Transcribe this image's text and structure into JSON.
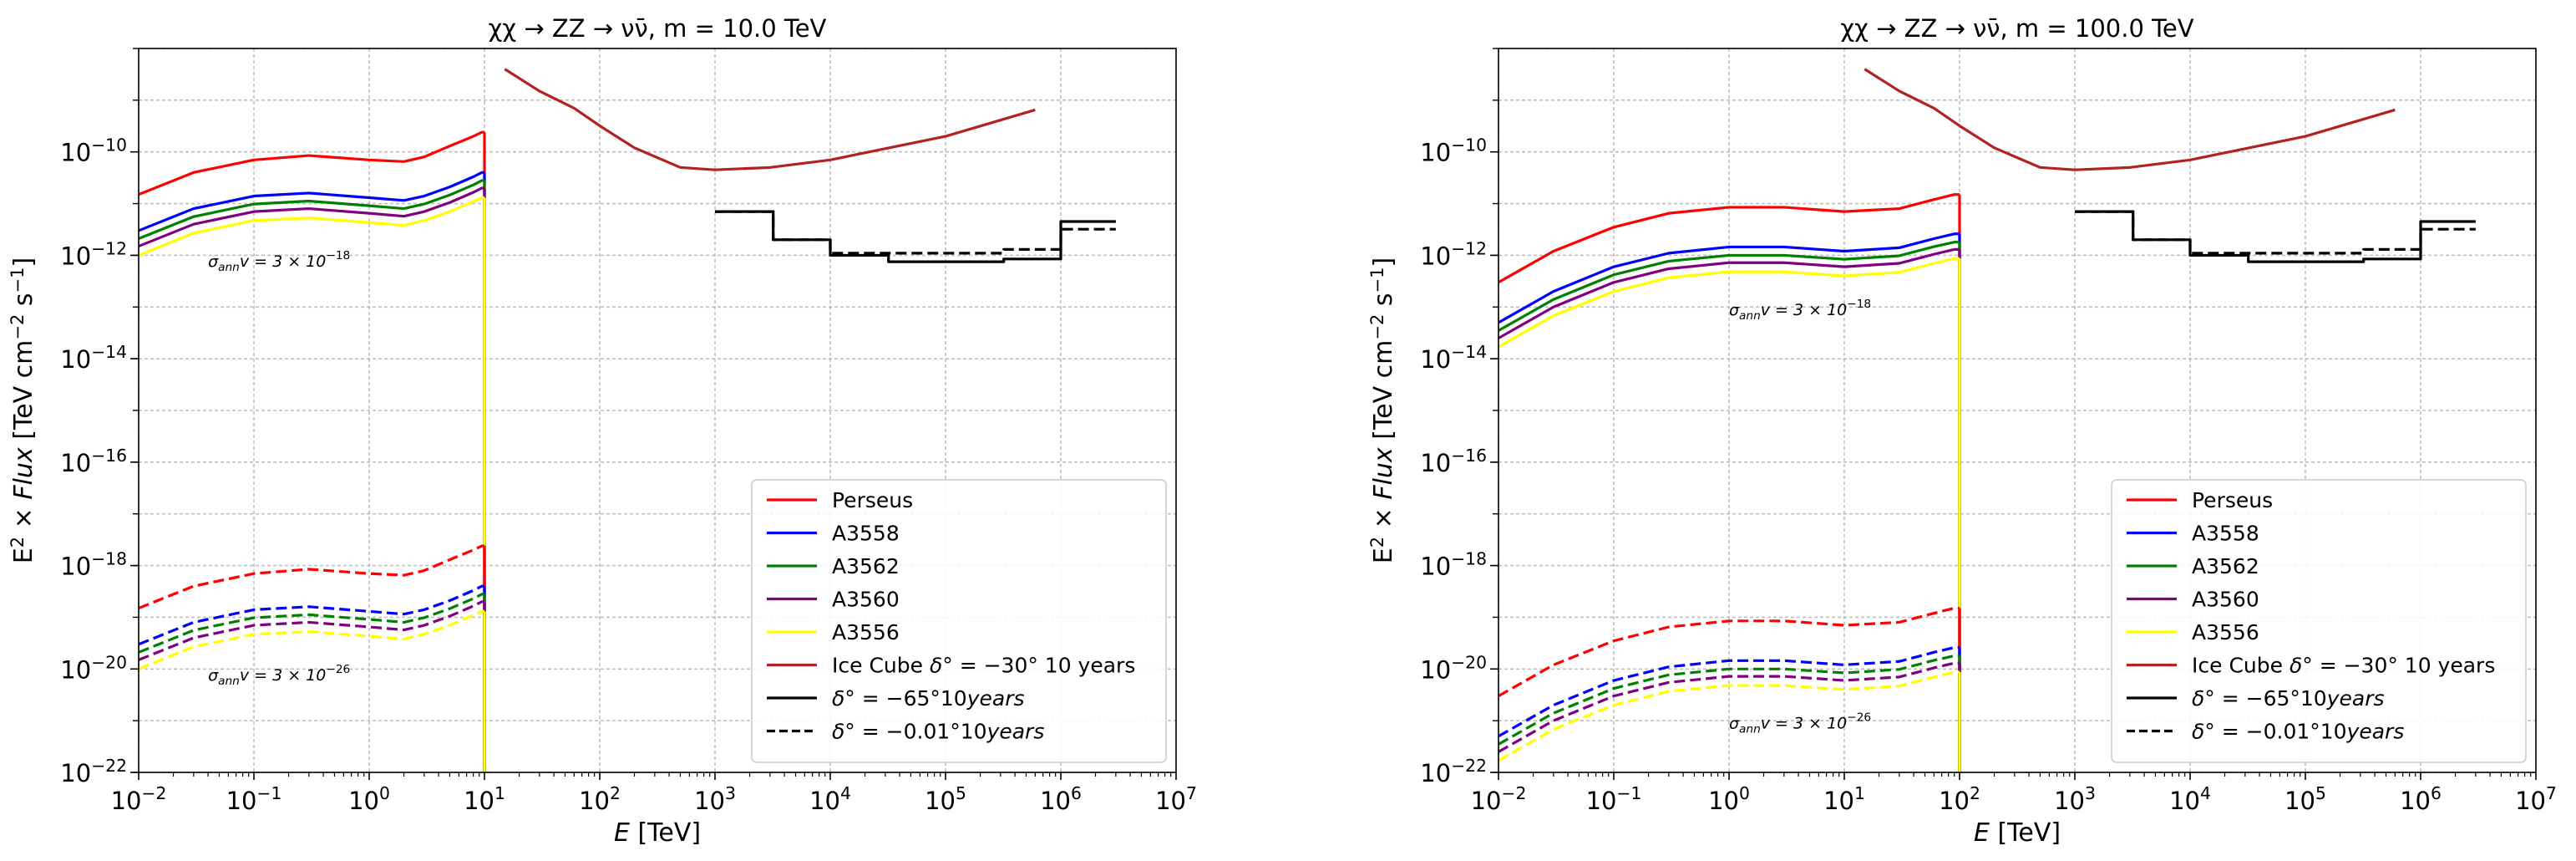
{
  "figure": {
    "ylabel_html": "E<tspan font-size='0.7em' dy='-10'>2</tspan><tspan dy='10'> × </tspan><tspan font-style='italic'>Flux</tspan> [TeV cm<tspan font-size='0.7em' dy='-10'>−2</tspan><tspan dy='10'> s</tspan><tspan font-size='0.7em' dy='-10'>−1</tspan><tspan dy='10'>]</tspan>",
    "ylabel_text": "E^2 × Flux [TeV cm^-2 s^-1]"
  },
  "chart_data": [
    {
      "type": "line",
      "title": "χχ → ZZ → νν̄, m = 10.0 TeV",
      "xlabel": "E [TeV]",
      "ylabel": "E^2 × Flux [TeV cm^-2 s^-1]",
      "xscale": "log",
      "yscale": "log",
      "xlim": [
        0.01,
        10000000
      ],
      "ylim": [
        1e-22,
        1e-08
      ],
      "x_ticks": [
        "10^-2",
        "10^-1",
        "10^0",
        "10^1",
        "10^2",
        "10^3",
        "10^4",
        "10^5",
        "10^6",
        "10^7"
      ],
      "y_ticks": [
        "10^-22",
        "10^-20",
        "10^-18",
        "10^-16",
        "10^-14",
        "10^-12",
        "10^-10"
      ],
      "grid": true,
      "legend_position": "lower-right",
      "annotations": [
        {
          "text": "σ_ann v = 3 × 10^-18",
          "x": 0.04,
          "y": 6e-13
        },
        {
          "text": "σ_ann v = 3 × 10^-26",
          "x": 0.04,
          "y": 6e-21
        }
      ],
      "dm_mass_tev": 10,
      "series": [
        {
          "name": "Perseus",
          "color": "#ff0000",
          "style": "solid",
          "x": [
            0.01,
            0.03,
            0.1,
            0.3,
            1,
            2,
            3,
            5,
            8,
            9.5,
            10
          ],
          "y": [
            1.5e-11,
            4e-11,
            7e-11,
            8.5e-11,
            7e-11,
            6.5e-11,
            8e-11,
            1.3e-10,
            2e-10,
            2.4e-10,
            2.4e-10
          ]
        },
        {
          "name": "A3558",
          "color": "#0000ff",
          "style": "solid",
          "x": [
            0.01,
            0.03,
            0.1,
            0.3,
            1,
            2,
            3,
            5,
            8,
            9.5,
            10
          ],
          "y": [
            3e-12,
            8e-12,
            1.4e-11,
            1.6e-11,
            1.3e-11,
            1.15e-11,
            1.4e-11,
            2.1e-11,
            3.3e-11,
            4e-11,
            4e-11
          ]
        },
        {
          "name": "A3562",
          "color": "#008000",
          "style": "solid",
          "x": [
            0.01,
            0.03,
            0.1,
            0.3,
            1,
            2,
            3,
            5,
            8,
            9.5,
            10
          ],
          "y": [
            2.1e-12,
            5.6e-12,
            9.8e-12,
            1.12e-11,
            9.1e-12,
            8e-12,
            9.8e-12,
            1.47e-11,
            2.3e-11,
            2.8e-11,
            2.8e-11
          ]
        },
        {
          "name": "A3560",
          "color": "#800080",
          "style": "solid",
          "x": [
            0.01,
            0.03,
            0.1,
            0.3,
            1,
            2,
            3,
            5,
            8,
            9.5,
            10
          ],
          "y": [
            1.5e-12,
            4e-12,
            7e-12,
            8e-12,
            6.5e-12,
            5.7e-12,
            7e-12,
            1.05e-11,
            1.65e-11,
            2e-11,
            2e-11
          ]
        },
        {
          "name": "A3556",
          "color": "#ffff00",
          "style": "solid",
          "x": [
            0.01,
            0.03,
            0.1,
            0.3,
            1,
            2,
            3,
            5,
            8,
            9.5,
            10
          ],
          "y": [
            1e-12,
            2.7e-12,
            4.7e-12,
            5.3e-12,
            4.3e-12,
            3.8e-12,
            4.7e-12,
            7e-12,
            1.1e-11,
            1.3e-11,
            1.3e-11
          ]
        },
        {
          "name": "",
          "color": "#ff0000",
          "style": "dashed",
          "x": [
            0.01,
            0.03,
            0.1,
            0.3,
            1,
            2,
            3,
            5,
            8,
            9.5,
            10
          ],
          "y": [
            1.5e-19,
            4e-19,
            7e-19,
            8.5e-19,
            7e-19,
            6.5e-19,
            8e-19,
            1.3e-18,
            2e-18,
            2.4e-18,
            2.4e-18
          ]
        },
        {
          "name": "",
          "color": "#0000ff",
          "style": "dashed",
          "x": [
            0.01,
            0.03,
            0.1,
            0.3,
            1,
            2,
            3,
            5,
            8,
            9.5,
            10
          ],
          "y": [
            3e-20,
            8e-20,
            1.4e-19,
            1.6e-19,
            1.3e-19,
            1.15e-19,
            1.4e-19,
            2.1e-19,
            3.3e-19,
            4e-19,
            4e-19
          ]
        },
        {
          "name": "",
          "color": "#008000",
          "style": "dashed",
          "x": [
            0.01,
            0.03,
            0.1,
            0.3,
            1,
            2,
            3,
            5,
            8,
            9.5,
            10
          ],
          "y": [
            2.1e-20,
            5.6e-20,
            9.8e-20,
            1.12e-19,
            9.1e-20,
            8e-20,
            9.8e-20,
            1.47e-19,
            2.3e-19,
            2.8e-19,
            2.8e-19
          ]
        },
        {
          "name": "",
          "color": "#800080",
          "style": "dashed",
          "x": [
            0.01,
            0.03,
            0.1,
            0.3,
            1,
            2,
            3,
            5,
            8,
            9.5,
            10
          ],
          "y": [
            1.5e-20,
            4e-20,
            7e-20,
            8e-20,
            6.5e-20,
            5.7e-20,
            7e-20,
            1.05e-19,
            1.65e-19,
            2e-19,
            2e-19
          ]
        },
        {
          "name": "",
          "color": "#ffff00",
          "style": "dashed",
          "x": [
            0.01,
            0.03,
            0.1,
            0.3,
            1,
            2,
            3,
            5,
            8,
            9.5,
            10
          ],
          "y": [
            1e-20,
            2.7e-20,
            4.7e-20,
            5.3e-20,
            4.3e-20,
            3.8e-20,
            4.7e-20,
            7e-20,
            1.1e-19,
            1.3e-19,
            1.3e-19
          ]
        },
        {
          "name": "Ice Cube δ° = −30° 10 years",
          "color": "#b22222",
          "style": "solid",
          "x": [
            15,
            30,
            60,
            100,
            200,
            500,
            1000,
            3000,
            10000,
            100000,
            600000
          ],
          "y": [
            4e-09,
            1.5e-09,
            7e-10,
            3.2e-10,
            1.2e-10,
            5e-11,
            4.5e-11,
            5e-11,
            7e-11,
            2e-10,
            6.5e-10
          ]
        },
        {
          "name": "δ° = −65°10years",
          "color": "#000000",
          "style": "solid",
          "x": [
            1000,
            3200,
            3200,
            10000,
            10000,
            32000,
            32000,
            320000,
            320000,
            1000000,
            1000000,
            3000000
          ],
          "y": [
            7e-12,
            7e-12,
            2e-12,
            2e-12,
            1e-12,
            1e-12,
            7.5e-13,
            7.5e-13,
            8.5e-13,
            8.5e-13,
            4.5e-12,
            4.5e-12
          ]
        },
        {
          "name": "δ° = −0.01°10years",
          "color": "#000000",
          "style": "dashed",
          "x": [
            1000,
            3200,
            3200,
            10000,
            10000,
            320000,
            320000,
            1000000,
            1000000,
            3000000
          ],
          "y": [
            7e-12,
            7e-12,
            2e-12,
            2e-12,
            1.1e-12,
            1.1e-12,
            1.3e-12,
            1.3e-12,
            3.2e-12,
            3.2e-12
          ]
        }
      ],
      "legend": [
        "Perseus",
        "A3558",
        "A3562",
        "A3560",
        "A3556",
        "Ice Cube δ° = −30° 10 years",
        "δ° = −65°10years",
        "δ° = −0.01°10years"
      ]
    },
    {
      "type": "line",
      "title": "χχ → ZZ → νν̄, m = 100.0 TeV",
      "xlabel": "E [TeV]",
      "ylabel": "E^2 × Flux [TeV cm^-2 s^-1]",
      "xscale": "log",
      "yscale": "log",
      "xlim": [
        0.01,
        10000000
      ],
      "ylim": [
        1e-22,
        1e-08
      ],
      "x_ticks": [
        "10^-2",
        "10^-1",
        "10^0",
        "10^1",
        "10^2",
        "10^3",
        "10^4",
        "10^5",
        "10^6",
        "10^7"
      ],
      "y_ticks": [
        "10^-22",
        "10^-20",
        "10^-18",
        "10^-16",
        "10^-14",
        "10^-12",
        "10^-10"
      ],
      "grid": true,
      "legend_position": "lower-right",
      "annotations": [
        {
          "text": "σ_ann v = 3 × 10^-18",
          "x": 1,
          "y": 7e-14
        },
        {
          "text": "σ_ann v = 3 × 10^-26",
          "x": 1,
          "y": 7e-22
        }
      ],
      "dm_mass_tev": 100,
      "series": [
        {
          "name": "Perseus",
          "color": "#ff0000",
          "style": "solid",
          "x": [
            0.01,
            0.03,
            0.1,
            0.3,
            1,
            3,
            10,
            30,
            60,
            90,
            100
          ],
          "y": [
            3e-13,
            1.2e-12,
            3.5e-12,
            6.5e-12,
            8.5e-12,
            8.5e-12,
            7e-12,
            8e-12,
            1.2e-11,
            1.5e-11,
            1.5e-11
          ]
        },
        {
          "name": "A3558",
          "color": "#0000ff",
          "style": "solid",
          "x": [
            0.01,
            0.03,
            0.1,
            0.3,
            1,
            3,
            10,
            30,
            60,
            90,
            100
          ],
          "y": [
            5e-14,
            2e-13,
            6e-13,
            1.1e-12,
            1.45e-12,
            1.45e-12,
            1.2e-12,
            1.4e-12,
            2.1e-12,
            2.6e-12,
            2.6e-12
          ]
        },
        {
          "name": "A3562",
          "color": "#008000",
          "style": "solid",
          "x": [
            0.01,
            0.03,
            0.1,
            0.3,
            1,
            3,
            10,
            30,
            60,
            90,
            100
          ],
          "y": [
            3.5e-14,
            1.4e-13,
            4.2e-13,
            7.7e-13,
            1e-12,
            1e-12,
            8.4e-13,
            9.8e-13,
            1.47e-12,
            1.8e-12,
            1.8e-12
          ]
        },
        {
          "name": "A3560",
          "color": "#800080",
          "style": "solid",
          "x": [
            0.01,
            0.03,
            0.1,
            0.3,
            1,
            3,
            10,
            30,
            60,
            90,
            100
          ],
          "y": [
            2.5e-14,
            1e-13,
            3e-13,
            5.5e-13,
            7.2e-13,
            7.2e-13,
            6e-13,
            7e-13,
            1.05e-12,
            1.3e-12,
            1.3e-12
          ]
        },
        {
          "name": "A3556",
          "color": "#ffff00",
          "style": "solid",
          "x": [
            0.01,
            0.03,
            0.1,
            0.3,
            1,
            3,
            10,
            30,
            60,
            90,
            100
          ],
          "y": [
            1.7e-14,
            6.8e-14,
            2e-13,
            3.7e-13,
            4.8e-13,
            4.8e-13,
            4e-13,
            4.7e-13,
            7e-13,
            8.7e-13,
            8.7e-13
          ]
        },
        {
          "name": "",
          "color": "#ff0000",
          "style": "dashed",
          "x": [
            0.01,
            0.03,
            0.1,
            0.3,
            1,
            3,
            10,
            30,
            60,
            90,
            100
          ],
          "y": [
            3e-21,
            1.2e-20,
            3.5e-20,
            6.5e-20,
            8.5e-20,
            8.5e-20,
            7e-20,
            8e-20,
            1.2e-19,
            1.5e-19,
            1.5e-19
          ]
        },
        {
          "name": "",
          "color": "#0000ff",
          "style": "dashed",
          "x": [
            0.01,
            0.03,
            0.1,
            0.3,
            1,
            3,
            10,
            30,
            60,
            90,
            100
          ],
          "y": [
            5e-22,
            2e-21,
            6e-21,
            1.1e-20,
            1.45e-20,
            1.45e-20,
            1.2e-20,
            1.4e-20,
            2.1e-20,
            2.6e-20,
            2.6e-20
          ]
        },
        {
          "name": "",
          "color": "#008000",
          "style": "dashed",
          "x": [
            0.01,
            0.03,
            0.1,
            0.3,
            1,
            3,
            10,
            30,
            60,
            90,
            100
          ],
          "y": [
            3.5e-22,
            1.4e-21,
            4.2e-21,
            7.7e-21,
            1e-20,
            1e-20,
            8.4e-21,
            9.8e-21,
            1.47e-20,
            1.8e-20,
            1.8e-20
          ]
        },
        {
          "name": "",
          "color": "#800080",
          "style": "dashed",
          "x": [
            0.01,
            0.03,
            0.1,
            0.3,
            1,
            3,
            10,
            30,
            60,
            90,
            100
          ],
          "y": [
            2.5e-22,
            1e-21,
            3e-21,
            5.5e-21,
            7.2e-21,
            7.2e-21,
            6e-21,
            7e-21,
            1.05e-20,
            1.3e-20,
            1.3e-20
          ]
        },
        {
          "name": "",
          "color": "#ffff00",
          "style": "dashed",
          "x": [
            0.01,
            0.03,
            0.1,
            0.3,
            1,
            3,
            10,
            30,
            60,
            90,
            100
          ],
          "y": [
            1.7e-22,
            6.8e-22,
            2e-21,
            3.7e-21,
            4.8e-21,
            4.8e-21,
            4e-21,
            4.7e-21,
            7e-21,
            8.7e-21,
            8.7e-21
          ]
        },
        {
          "name": "Ice Cube δ° = −30° 10 years",
          "color": "#b22222",
          "style": "solid",
          "x": [
            15,
            30,
            60,
            100,
            200,
            500,
            1000,
            3000,
            10000,
            100000,
            600000
          ],
          "y": [
            4e-09,
            1.5e-09,
            7e-10,
            3.2e-10,
            1.2e-10,
            5e-11,
            4.5e-11,
            5e-11,
            7e-11,
            2e-10,
            6.5e-10
          ]
        },
        {
          "name": "δ° = −65°10years",
          "color": "#000000",
          "style": "solid",
          "x": [
            1000,
            3200,
            3200,
            10000,
            10000,
            32000,
            32000,
            320000,
            320000,
            1000000,
            1000000,
            3000000
          ],
          "y": [
            7e-12,
            7e-12,
            2e-12,
            2e-12,
            1e-12,
            1e-12,
            7.5e-13,
            7.5e-13,
            8.5e-13,
            8.5e-13,
            4.5e-12,
            4.5e-12
          ]
        },
        {
          "name": "δ° = −0.01°10years",
          "color": "#000000",
          "style": "dashed",
          "x": [
            1000,
            3200,
            3200,
            10000,
            10000,
            320000,
            320000,
            1000000,
            1000000,
            3000000
          ],
          "y": [
            7e-12,
            7e-12,
            2e-12,
            2e-12,
            1.1e-12,
            1.1e-12,
            1.3e-12,
            1.3e-12,
            3.2e-12,
            3.2e-12
          ]
        }
      ],
      "legend": [
        "Perseus",
        "A3558",
        "A3562",
        "A3560",
        "A3556",
        "Ice Cube δ° = −30° 10 years",
        "δ° = −65°10years",
        "δ° = −0.01°10years"
      ]
    }
  ]
}
